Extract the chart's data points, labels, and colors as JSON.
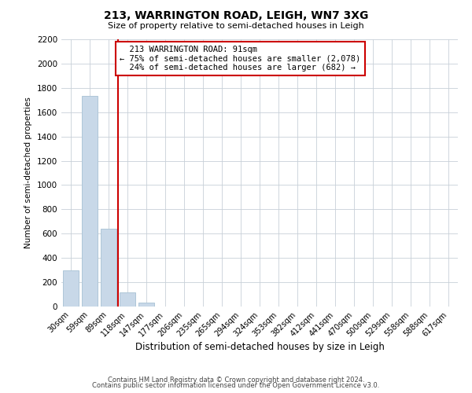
{
  "title": "213, WARRINGTON ROAD, LEIGH, WN7 3XG",
  "subtitle": "Size of property relative to semi-detached houses in Leigh",
  "xlabel": "Distribution of semi-detached houses by size in Leigh",
  "ylabel": "Number of semi-detached properties",
  "bar_labels": [
    "30sqm",
    "59sqm",
    "89sqm",
    "118sqm",
    "147sqm",
    "177sqm",
    "206sqm",
    "235sqm",
    "265sqm",
    "294sqm",
    "324sqm",
    "353sqm",
    "382sqm",
    "412sqm",
    "441sqm",
    "470sqm",
    "500sqm",
    "529sqm",
    "558sqm",
    "588sqm",
    "617sqm"
  ],
  "bar_values": [
    295,
    1735,
    640,
    115,
    30,
    0,
    0,
    0,
    0,
    0,
    0,
    0,
    0,
    0,
    0,
    0,
    0,
    0,
    0,
    0,
    0
  ],
  "bar_color": "#c8d8e8",
  "bar_edgecolor": "#aec6d8",
  "vline_color": "#cc0000",
  "annotation_box_edgecolor": "#cc0000",
  "property_label": "213 WARRINGTON ROAD: 91sqm",
  "pct_smaller": 75,
  "count_smaller": 2078,
  "pct_larger": 24,
  "count_larger": 682,
  "ylim": [
    0,
    2200
  ],
  "yticks": [
    0,
    200,
    400,
    600,
    800,
    1000,
    1200,
    1400,
    1600,
    1800,
    2000,
    2200
  ],
  "grid_color": "#c8d0d8",
  "bg_color": "#ffffff",
  "footer_line1": "Contains HM Land Registry data © Crown copyright and database right 2024.",
  "footer_line2": "Contains public sector information licensed under the Open Government Licence v3.0."
}
